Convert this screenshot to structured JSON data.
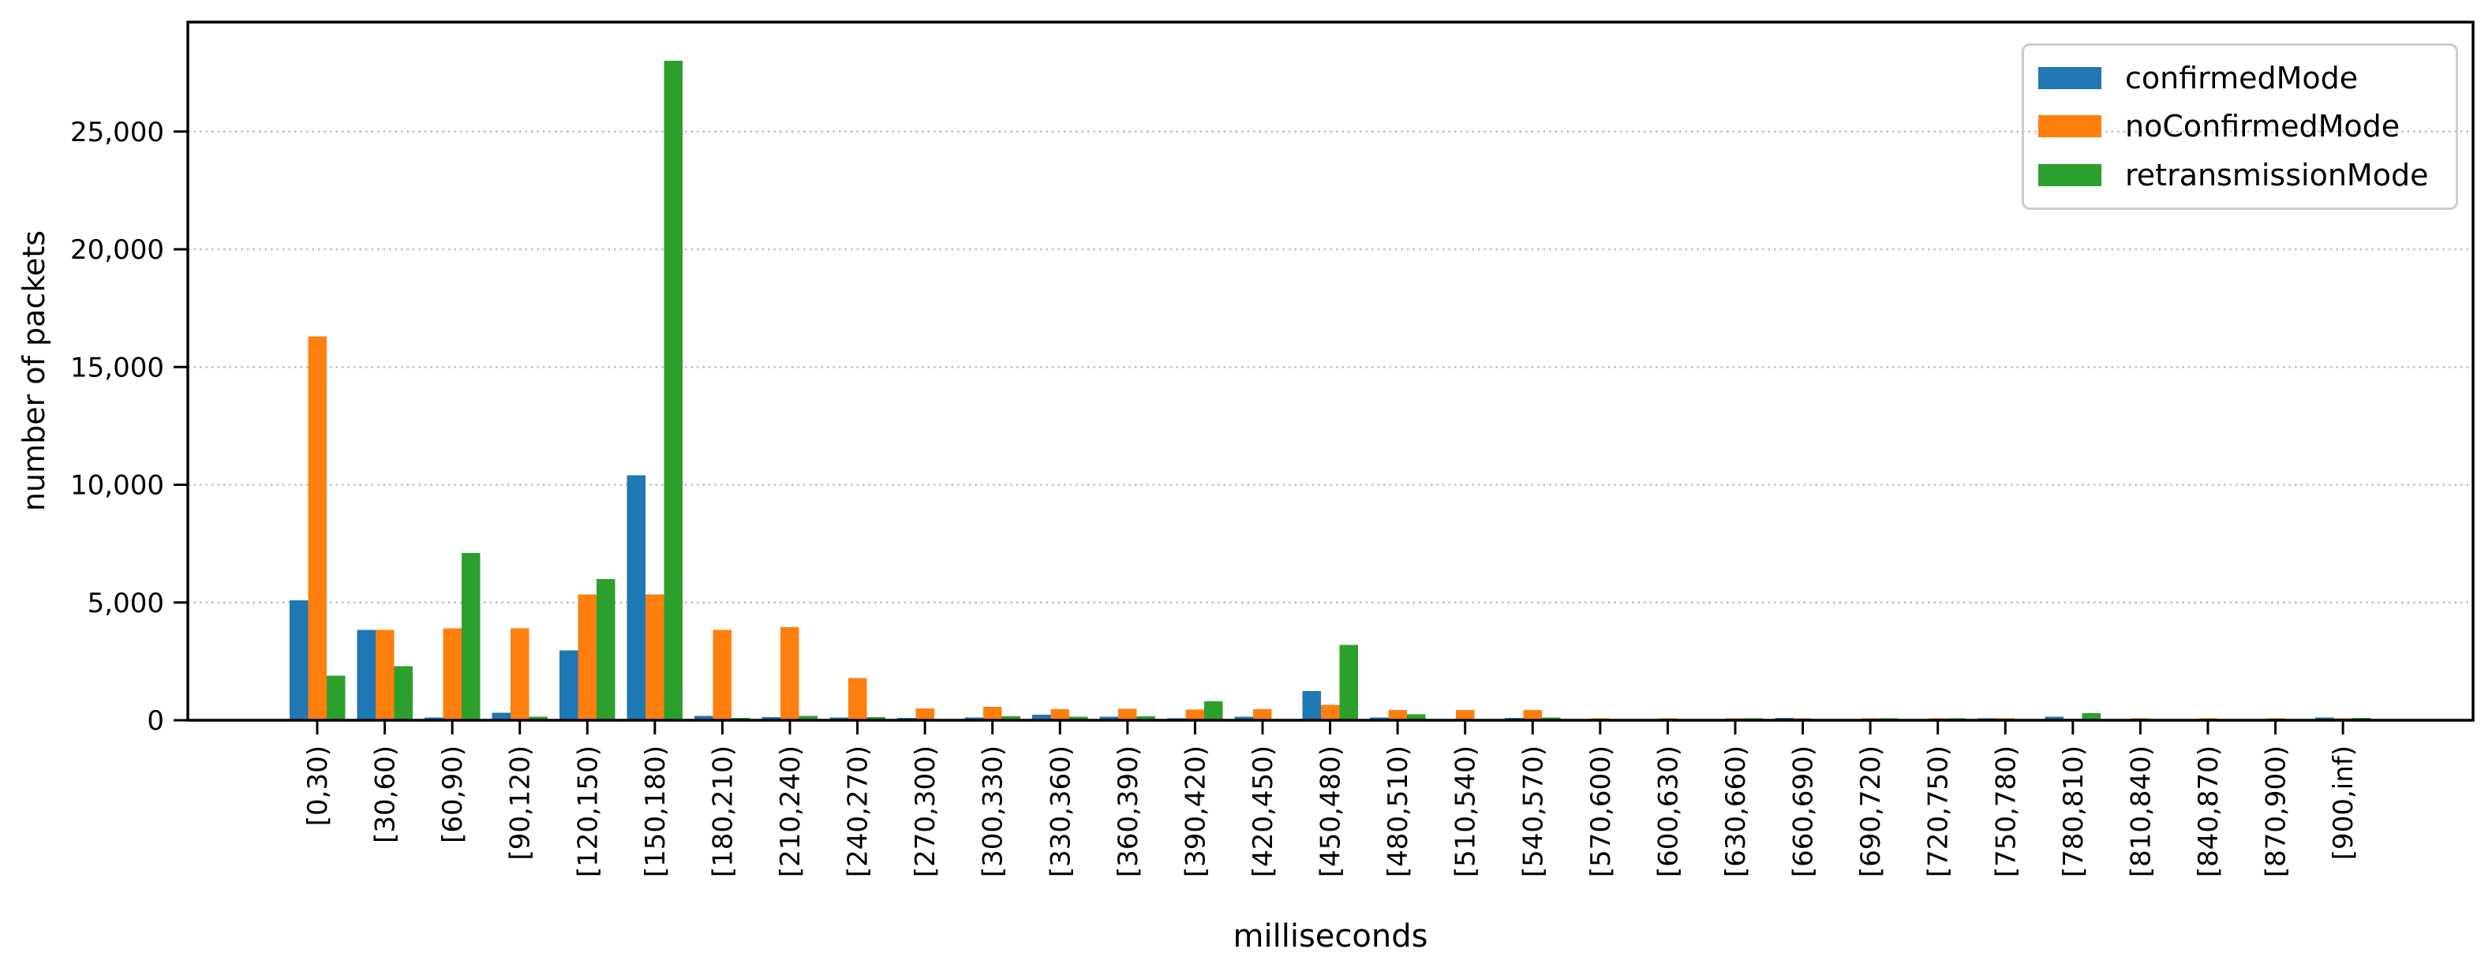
{
  "chart_data": {
    "type": "bar",
    "title": "",
    "xlabel": "milliseconds",
    "ylabel": "number of packets",
    "categories": [
      "[0,30)",
      "[30,60)",
      "[60,90)",
      "[90,120)",
      "[120,150)",
      "[150,180)",
      "[180,210)",
      "[210,240)",
      "[240,270)",
      "[270,300)",
      "[300,330)",
      "[330,360)",
      "[360,390)",
      "[390,420)",
      "[420,450)",
      "[450,480)",
      "[480,510)",
      "[510,540)",
      "[540,570)",
      "[570,600)",
      "[600,630)",
      "[630,660)",
      "[660,690)",
      "[690,720)",
      "[720,750)",
      "[750,780)",
      "[780,810)",
      "[810,840)",
      "[840,870)",
      "[870,900)",
      "[900,inf)"
    ],
    "series": [
      {
        "name": "confirmedMode",
        "color": "#1f77b4",
        "values": [
          5100,
          3830,
          110,
          320,
          2960,
          10400,
          190,
          130,
          120,
          100,
          120,
          240,
          150,
          80,
          150,
          1240,
          120,
          25,
          100,
          15,
          15,
          20,
          100,
          15,
          15,
          90,
          150,
          10,
          10,
          10,
          110
        ]
      },
      {
        "name": "noConfirmedMode",
        "color": "#ff7f0e",
        "values": [
          16300,
          3830,
          3900,
          3900,
          5350,
          5350,
          3830,
          3950,
          1790,
          500,
          570,
          470,
          490,
          450,
          470,
          650,
          430,
          430,
          440,
          90,
          90,
          90,
          90,
          85,
          80,
          80,
          60,
          80,
          80,
          80,
          90
        ]
      },
      {
        "name": "retransmissionMode",
        "color": "#2ca02c",
        "values": [
          1900,
          2300,
          7100,
          150,
          6000,
          28000,
          100,
          190,
          130,
          45,
          160,
          150,
          160,
          800,
          50,
          3200,
          250,
          25,
          115,
          10,
          10,
          80,
          10,
          80,
          90,
          10,
          300,
          10,
          10,
          10,
          100
        ]
      }
    ],
    "ylim": [
      0,
      29650
    ],
    "yticks": {
      "values": [
        0,
        5000,
        10000,
        15000,
        20000,
        25000
      ],
      "labels": [
        "0",
        "5,000",
        "10,000",
        "15,000",
        "20,000",
        "25,000"
      ]
    },
    "grid": "horizontal-dotted",
    "legend_position": "upper right",
    "x_tick_rotation": 90
  },
  "colors": {
    "background": "#ffffff",
    "axis": "#000000",
    "grid": "#bdbdbd",
    "legend_border": "#cdcdcd"
  }
}
